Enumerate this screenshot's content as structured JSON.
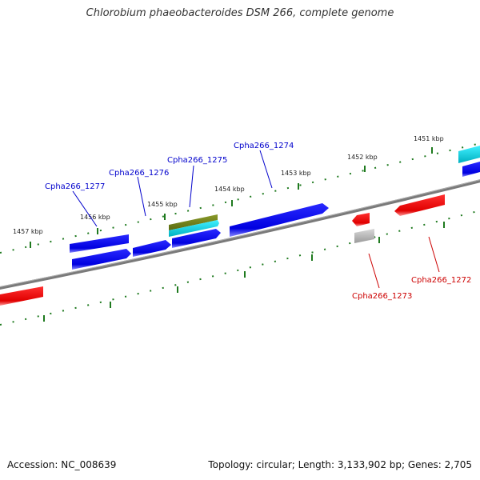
{
  "title": "Chlorobium phaeobacteroides DSM 266, complete genome",
  "footer": {
    "accession": "Accession: NC_008639",
    "topology": "Topology: circular; Length: 3,133,902 bp; Genes: 2,705"
  },
  "colors": {
    "backbone": "#7a7a7a",
    "ticks": "#1f7a1f",
    "forward_gene": "#0000ff",
    "reverse_gene": "#ff0000",
    "label_forward": "#0000cc",
    "label_reverse": "#cc0000",
    "olive_gene": "#6b7a1e",
    "cyan_gene": "#00c8d8",
    "grey_gene": "#b0b0b0"
  },
  "ticks": [
    {
      "label": "1451 kbp"
    },
    {
      "label": "1452 kbp"
    },
    {
      "label": "1453 kbp"
    },
    {
      "label": "1454 kbp"
    },
    {
      "label": "1455 kbp"
    },
    {
      "label": "1456 kbp"
    },
    {
      "label": "1457 kbp"
    }
  ],
  "gene_labels": [
    {
      "text": "Cpha266_1277",
      "strand": "forward"
    },
    {
      "text": "Cpha266_1276",
      "strand": "forward"
    },
    {
      "text": "Cpha266_1275",
      "strand": "forward"
    },
    {
      "text": "Cpha266_1274",
      "strand": "forward"
    },
    {
      "text": "Cpha266_1273",
      "strand": "reverse"
    },
    {
      "text": "Cpha266_1272",
      "strand": "reverse"
    }
  ]
}
